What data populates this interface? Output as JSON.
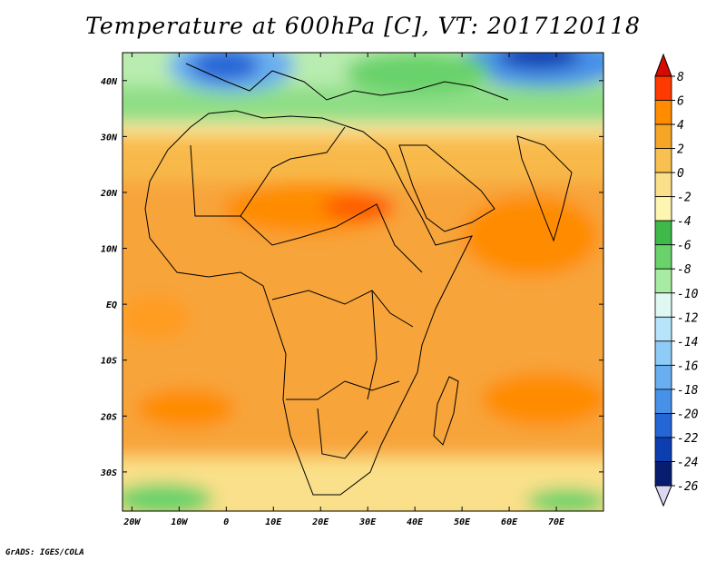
{
  "title": "Temperature at 600hPa [C], VT: 2017120118",
  "credit": "GrADS: IGES/COLA",
  "map": {
    "type": "filled-contour",
    "projection": "lat-lon",
    "lon_range": [
      -22,
      80
    ],
    "lat_range": [
      -37,
      45
    ],
    "lat_ticks": [
      "40N",
      "30N",
      "20N",
      "10N",
      "EQ",
      "10S",
      "20S",
      "30S"
    ],
    "lat_values": [
      40,
      30,
      20,
      10,
      0,
      -10,
      -20,
      -30
    ],
    "lon_ticks": [
      "20W",
      "10W",
      "0",
      "10E",
      "20E",
      "30E",
      "40E",
      "50E",
      "60E",
      "70E"
    ],
    "lon_values": [
      -20,
      -10,
      0,
      10,
      20,
      30,
      40,
      50,
      60,
      70
    ],
    "variable": "Temperature at 600hPa",
    "units": "C",
    "valid_time": "2017120118"
  },
  "colorbar": {
    "labels": [
      "8",
      "6",
      "4",
      "2",
      "0",
      "-2",
      "-4",
      "-6",
      "-8",
      "-10",
      "-12",
      "-14",
      "-16",
      "-18",
      "-20",
      "-22",
      "-24",
      "-26"
    ],
    "levels": [
      8,
      6,
      4,
      2,
      0,
      -2,
      -4,
      -6,
      -8,
      -10,
      -12,
      -14,
      -16,
      -18,
      -20,
      -22,
      -24,
      -26
    ],
    "colors": [
      "#d60a00",
      "#ff3a00",
      "#ff8c00",
      "#f5a626",
      "#f8c050",
      "#fae08a",
      "#fdf5b0",
      "#3fb94a",
      "#69d26a",
      "#a8eba2",
      "#e0f8f2",
      "#b8e4fb",
      "#8ecbf6",
      "#69aef0",
      "#4791e8",
      "#2566d6",
      "#0d3eb0",
      "#081d70",
      "#dcd8f4"
    ]
  },
  "colors": {
    "frame": "#000000",
    "land_border": "#000000"
  }
}
